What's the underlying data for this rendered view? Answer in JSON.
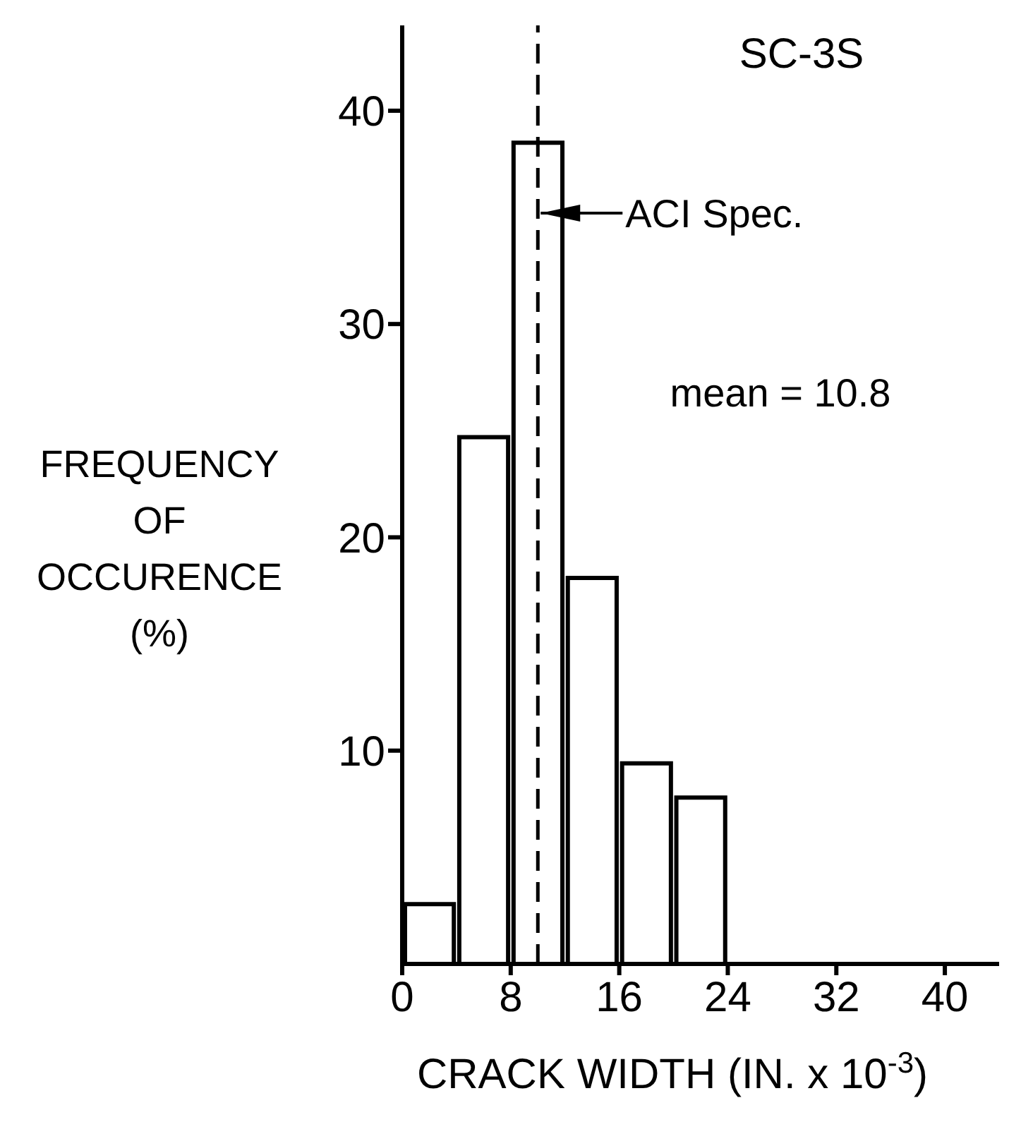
{
  "chart_data": {
    "type": "histogram",
    "title": "SC-3S",
    "xlabel": "CRACK WIDTH (IN. x 10$^{-3}$)",
    "ylabel": "FREQUENCY OF OCCURENCE (%)",
    "bins": [
      0,
      4,
      8,
      12,
      16,
      20,
      24
    ],
    "values": [
      2.8,
      24.7,
      38.5,
      18.1,
      9.4,
      7.8
    ],
    "color": "#ffffff",
    "xlim": [
      0,
      44
    ],
    "xticks": [
      0,
      8,
      16,
      24,
      32,
      40
    ],
    "ylim": [
      0,
      44
    ],
    "yticks": [
      10,
      20,
      30,
      40
    ],
    "ref_lines": [
      {
        "axis": "x",
        "value": 10,
        "label": "ACI Spec.",
        "color": "#000000",
        "line_style": "dashed"
      }
    ],
    "annotations": [
      "mean = 10.8"
    ],
    "grid": false,
    "legend": false
  }
}
